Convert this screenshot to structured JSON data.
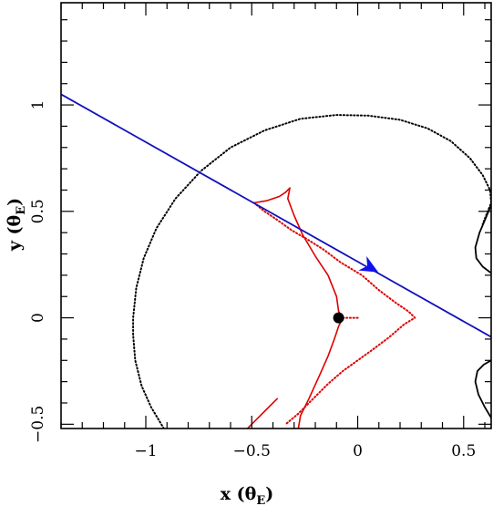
{
  "chart_data": {
    "type": "scatter",
    "title": "",
    "xlabel": {
      "main": "x (",
      "symbol": "θ",
      "sub": "E",
      "close": ")"
    },
    "ylabel": {
      "main": "y (",
      "symbol": "θ",
      "sub": "E",
      "close": ")"
    },
    "xlim": [
      -1.4,
      0.63
    ],
    "ylim": [
      -0.52,
      1.48
    ],
    "x_ticks": [
      {
        "value": -1,
        "label": "−1"
      },
      {
        "value": -0.5,
        "label": "−0.5"
      },
      {
        "value": 0,
        "label": "0"
      },
      {
        "value": 0.5,
        "label": "0.5"
      }
    ],
    "y_ticks": [
      {
        "value": -0.5,
        "label": "−0.5"
      },
      {
        "value": 0,
        "label": "0"
      },
      {
        "value": 0.5,
        "label": "0.5"
      },
      {
        "value": 1,
        "label": "1"
      }
    ],
    "grid": false,
    "legend": "none",
    "lens_point": {
      "x": -0.09,
      "y": 0.0,
      "color": "#000000"
    },
    "source_trajectory": {
      "color": "#1111bb",
      "arrow_color": "#1010ee",
      "start": {
        "x": -1.4,
        "y": 1.05
      },
      "end": {
        "x": 0.63,
        "y": -0.09
      },
      "arrow_at": {
        "x": 0.06,
        "y": 0.235
      }
    },
    "critical_curve_color": "#000000",
    "caustic_color": "#dd0000",
    "critical_curve_dotted": [
      [
        -0.915,
        -0.52
      ],
      [
        -0.975,
        -0.42
      ],
      [
        -1.02,
        -0.32
      ],
      [
        -1.05,
        -0.2
      ],
      [
        -1.06,
        -0.08
      ],
      [
        -1.06,
        0.0
      ],
      [
        -1.045,
        0.14
      ],
      [
        -1.01,
        0.28
      ],
      [
        -0.95,
        0.42
      ],
      [
        -0.86,
        0.56
      ],
      [
        -0.74,
        0.69
      ],
      [
        -0.6,
        0.8
      ],
      [
        -0.44,
        0.88
      ],
      [
        -0.27,
        0.935
      ],
      [
        -0.1,
        0.953
      ],
      [
        0.05,
        0.95
      ],
      [
        0.2,
        0.93
      ],
      [
        0.33,
        0.89
      ],
      [
        0.44,
        0.83
      ],
      [
        0.53,
        0.75
      ],
      [
        0.59,
        0.67
      ],
      [
        0.625,
        0.6
      ],
      [
        0.63,
        0.54
      ],
      [
        0.61,
        0.49
      ],
      [
        0.59,
        0.44
      ]
    ],
    "critical_curve_solid_upper": [
      [
        0.63,
        0.53
      ],
      [
        0.605,
        0.47
      ],
      [
        0.575,
        0.4
      ],
      [
        0.555,
        0.33
      ],
      [
        0.56,
        0.28
      ],
      [
        0.59,
        0.24
      ],
      [
        0.63,
        0.21
      ]
    ],
    "critical_curve_solid_lower": [
      [
        0.63,
        -0.2
      ],
      [
        0.595,
        -0.22
      ],
      [
        0.565,
        -0.25
      ],
      [
        0.555,
        -0.3
      ],
      [
        0.57,
        -0.36
      ],
      [
        0.6,
        -0.42
      ],
      [
        0.63,
        -0.47
      ]
    ],
    "caustic_solid": [
      [
        -0.49,
        0.54
      ],
      [
        -0.43,
        0.55
      ],
      [
        -0.37,
        0.57
      ],
      [
        -0.34,
        0.59
      ],
      [
        -0.32,
        0.61
      ],
      [
        -0.33,
        0.56
      ],
      [
        -0.3,
        0.48
      ],
      [
        -0.26,
        0.39
      ],
      [
        -0.2,
        0.29
      ],
      [
        -0.14,
        0.2
      ],
      [
        -0.1,
        0.1
      ],
      [
        -0.09,
        0.03
      ],
      [
        -0.07,
        0.0
      ],
      [
        -0.09,
        -0.04
      ],
      [
        -0.11,
        -0.1
      ],
      [
        -0.14,
        -0.18
      ],
      [
        -0.18,
        -0.27
      ],
      [
        -0.23,
        -0.38
      ],
      [
        -0.27,
        -0.46
      ],
      [
        -0.28,
        -0.52
      ]
    ],
    "caustic_solid_short": [
      [
        -0.52,
        -0.52
      ],
      [
        -0.47,
        -0.47
      ],
      [
        -0.43,
        -0.43
      ],
      [
        -0.38,
        -0.38
      ]
    ],
    "caustic_dotted": [
      [
        -0.49,
        0.54
      ],
      [
        -0.44,
        0.5
      ],
      [
        -0.38,
        0.46
      ],
      [
        -0.31,
        0.41
      ],
      [
        -0.24,
        0.37
      ],
      [
        -0.16,
        0.32
      ],
      [
        -0.08,
        0.26
      ],
      [
        0.02,
        0.2
      ],
      [
        0.1,
        0.13
      ],
      [
        0.18,
        0.07
      ],
      [
        0.24,
        0.03
      ],
      [
        0.27,
        0.0
      ],
      [
        0.22,
        -0.03
      ],
      [
        0.15,
        -0.09
      ],
      [
        0.07,
        -0.15
      ],
      [
        0.0,
        -0.2
      ],
      [
        -0.07,
        -0.25
      ],
      [
        -0.14,
        -0.31
      ],
      [
        -0.21,
        -0.38
      ],
      [
        -0.28,
        -0.45
      ],
      [
        -0.34,
        -0.5
      ]
    ],
    "caustic_inner_cusp_dotted": [
      [
        -0.07,
        0.0
      ],
      [
        -0.04,
        0.0
      ],
      [
        -0.01,
        0.0
      ],
      [
        0.01,
        0.0
      ]
    ]
  }
}
